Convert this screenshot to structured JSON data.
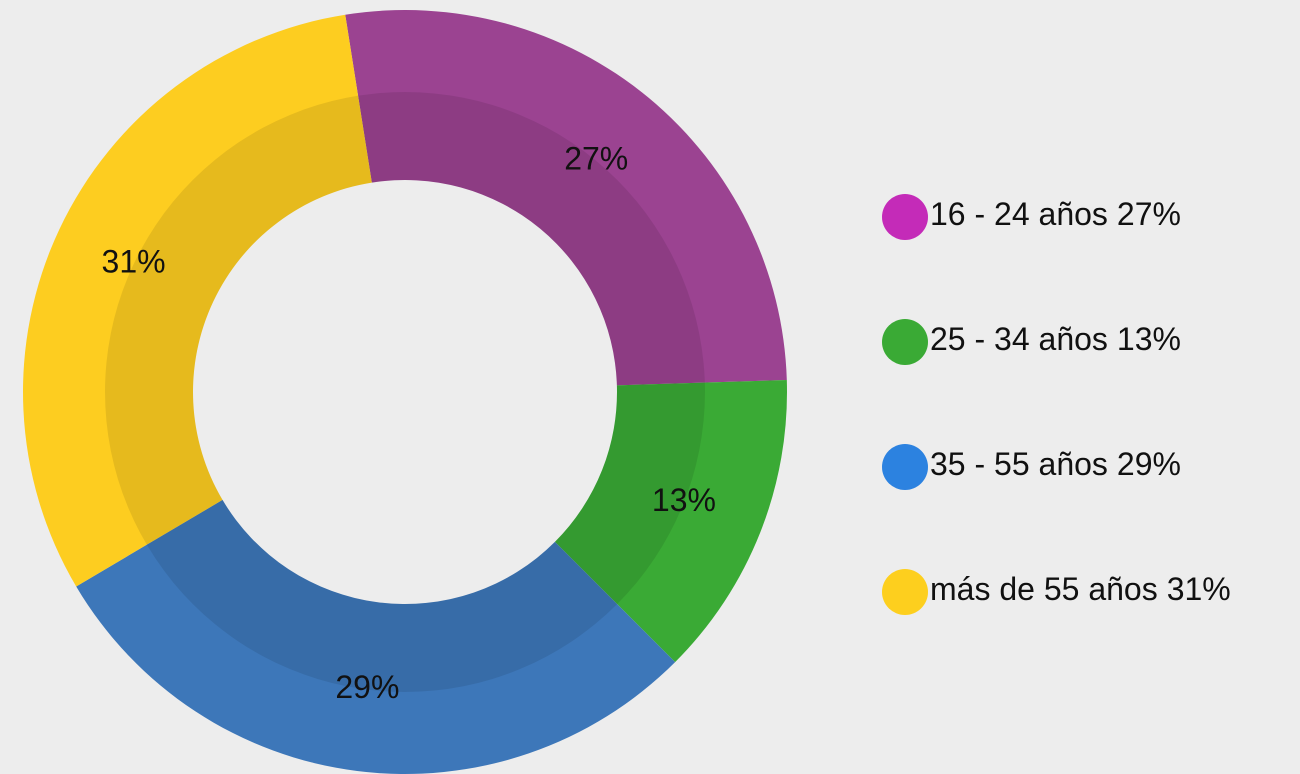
{
  "chart_data": {
    "type": "donut",
    "categories": [
      "16 - 24 años",
      "25 - 34 años",
      "35 - 55 años",
      "más de 55 años"
    ],
    "values": [
      27,
      13,
      29,
      31
    ],
    "value_labels": [
      "27%",
      "13%",
      "29%",
      "31%"
    ],
    "colors": [
      "#9b4391",
      "#3aaa35",
      "#3d77b9",
      "#fdcd20"
    ],
    "legend_colors": [
      "#c42bb8",
      "#3aaa35",
      "#2c82e0",
      "#fdcf1e"
    ],
    "legend": "right"
  }
}
